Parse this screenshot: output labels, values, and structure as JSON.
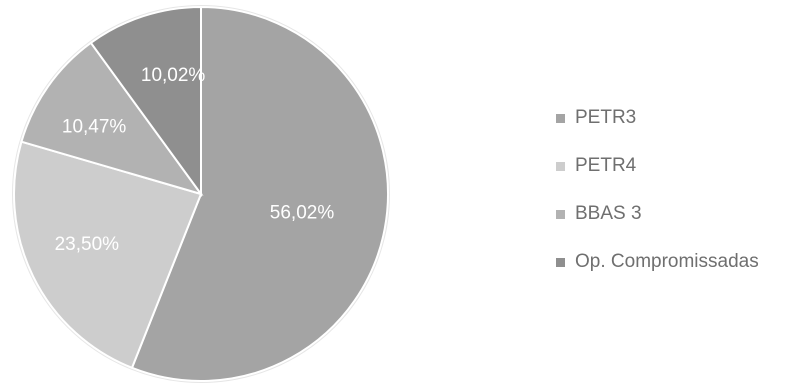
{
  "chart_data": {
    "type": "pie",
    "title": "",
    "slices": [
      {
        "label": "PETR3",
        "value": 56.02,
        "value_label": "56,02%",
        "color": "#a4a4a4"
      },
      {
        "label": "PETR4",
        "value": 23.5,
        "value_label": "23,50%",
        "color": "#cdcdcd"
      },
      {
        "label": "BBAS 3",
        "value": 10.47,
        "value_label": "10,47%",
        "color": "#b2b2b2"
      },
      {
        "label": "Op. Compromissadas",
        "value": 10.02,
        "value_label": "10,02%",
        "color": "#8f8f8f"
      }
    ],
    "start_angle_deg": 0,
    "direction": "clockwise",
    "legend_position": "right",
    "data_label_color": "#ffffff",
    "edge_color": "#ffffff",
    "outline_color": "#e6e6e6"
  }
}
